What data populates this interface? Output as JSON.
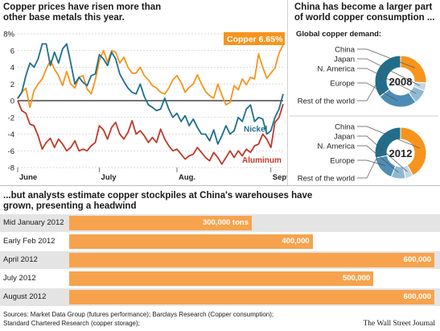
{
  "left_title": "Copper prices have risen more than other base metals this year.",
  "right_title": "China has become a larger part of world copper consumption ...",
  "right_subtitle": "Global copper demand:",
  "bottom_title": "...but analysts estimate copper stockpiles at China's warehouses have grown, presenting a headwind",
  "footer_sources": "Sources: Market Data Group (futures performance); Barclays Research (Copper consumption);",
  "footer_sources2": "Standard Chartered Research (copper storage);",
  "footer_brand": "The Wall Street Journal",
  "chart_data": [
    {
      "type": "line",
      "title": "Copper prices have risen more than other base metals this year.",
      "x_labels": [
        "June",
        "July",
        "Aug.",
        "Sept."
      ],
      "yticks": [
        "8%",
        "6",
        "4",
        "2",
        "0",
        "-2",
        "-4",
        "-6",
        "-8"
      ],
      "ylim": [
        -8,
        8
      ],
      "n_points": 66,
      "series": [
        {
          "name": "Copper",
          "label": "Copper 6.65%",
          "color": "#f7941d",
          "values": [
            0.2,
            1.0,
            1.5,
            -0.8,
            1.2,
            2.0,
            2.6,
            3.8,
            4.8,
            3.8,
            3.0,
            1.8,
            3.5,
            2.0,
            1.5,
            2.8,
            3.0,
            1.4,
            0.8,
            2.5,
            4.8,
            6.0,
            4.6,
            6.0,
            5.8,
            4.5,
            5.2,
            4.0,
            3.3,
            3.3,
            4.0,
            3.0,
            2.5,
            1.8,
            1.5,
            1.0,
            0.8,
            1.5,
            2.5,
            3.0,
            2.2,
            1.0,
            1.6,
            2.0,
            3.1,
            2.0,
            1.1,
            0.6,
            0.3,
            2.0,
            0.7,
            -0.5,
            -0.2,
            1.8,
            1.3,
            2.6,
            1.9,
            2.8,
            2.6,
            5.6,
            4.0,
            2.7,
            3.3,
            3.9,
            5.7,
            6.65
          ]
        },
        {
          "name": "Nickel",
          "label": "Nickel",
          "color": "#1f6e8c",
          "values": [
            0.3,
            1.0,
            3.0,
            4.5,
            4.0,
            5.0,
            6.8,
            6.8,
            4.2,
            5.8,
            4.5,
            6.2,
            6.8,
            4.5,
            2.0,
            2.8,
            2.2,
            1.8,
            3.0,
            3.2,
            5.5,
            5.0,
            4.2,
            5.8,
            5.0,
            3.2,
            2.3,
            1.5,
            1.0,
            0.8,
            2.0,
            0.5,
            -0.5,
            -0.8,
            -1.2,
            -1.0,
            0.3,
            -1.0,
            -2.0,
            -1.5,
            -2.5,
            -1.8,
            -3.0,
            -2.2,
            -3.2,
            -4.0,
            -4.0,
            -4.8,
            -3.5,
            -5.2,
            -4.2,
            -3.0,
            -4.0,
            -3.6,
            -2.0,
            -2.5,
            -1.0,
            -0.5,
            -2.5,
            -2.0,
            -2.2,
            -4.0,
            -3.6,
            -2.0,
            -1.0,
            0.8
          ]
        },
        {
          "name": "Aluminum",
          "label": "Aluminum",
          "color": "#c0392b",
          "values": [
            0.0,
            -1.2,
            -1.5,
            -2.8,
            -3.0,
            -4.2,
            -5.8,
            -5.0,
            -4.5,
            -5.6,
            -4.6,
            -5.2,
            -6.0,
            -5.6,
            -4.8,
            -6.0,
            -5.8,
            -6.0,
            -5.4,
            -5.0,
            -3.0,
            -3.5,
            -4.6,
            -3.2,
            -2.6,
            -4.0,
            -4.6,
            -3.8,
            -2.4,
            -4.0,
            -3.6,
            -4.2,
            -5.0,
            -4.4,
            -5.0,
            -3.4,
            -4.6,
            -5.4,
            -6.0,
            -5.8,
            -6.4,
            -7.0,
            -6.6,
            -6.4,
            -5.6,
            -6.2,
            -6.8,
            -7.2,
            -6.2,
            -6.8,
            -7.6,
            -6.8,
            -6.0,
            -6.8,
            -6.0,
            -6.6,
            -5.8,
            -6.2,
            -5.4,
            -5.2,
            -4.0,
            -4.6,
            -5.6,
            -2.6,
            -2.0,
            -0.4
          ]
        }
      ]
    },
    {
      "type": "pie",
      "title": "2008",
      "categories": [
        "China",
        "Japan",
        "N. America",
        "Europe",
        "Rest of the world"
      ],
      "values": [
        26,
        5,
        9,
        25,
        35
      ],
      "colors": [
        "#f7941d",
        "#bfd7e6",
        "#8fb8d2",
        "#4d8db5",
        "#1f6e8c"
      ]
    },
    {
      "type": "pie",
      "title": "2012",
      "categories": [
        "China",
        "Japan",
        "N. America",
        "Europe",
        "Rest of the world"
      ],
      "values": [
        42,
        5,
        9,
        16,
        28
      ],
      "colors": [
        "#f7941d",
        "#bfd7e6",
        "#8fb8d2",
        "#4d8db5",
        "#1f6e8c"
      ]
    },
    {
      "type": "bar",
      "title": "...but analysts estimate copper stockpiles at China's warehouses have grown, presenting a headwind",
      "categories": [
        "Mid January 2012",
        "Early Feb 2012",
        "April 2012",
        "July 2012",
        "August 2012"
      ],
      "values": [
        300000,
        400000,
        600000,
        500000,
        600000
      ],
      "value_labels": [
        "300,000 tons",
        "400,000",
        "600,000",
        "500,000",
        "600,000"
      ],
      "color": "#f7a24c",
      "xlim": [
        0,
        600000
      ]
    }
  ]
}
